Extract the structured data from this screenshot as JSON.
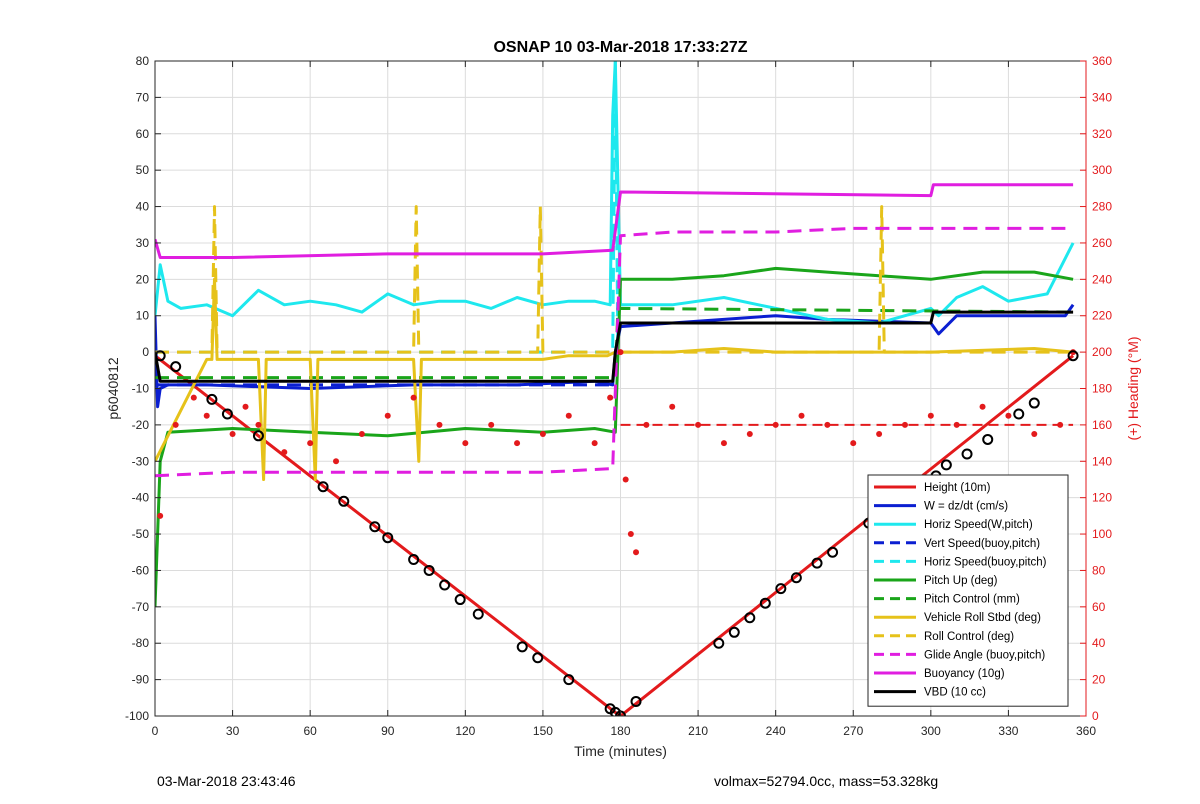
{
  "chart_data": {
    "type": "line",
    "title": "OSNAP 10 03-Mar-2018 17:33:27Z",
    "xlabel": "Time (minutes)",
    "ylabel": "p6040812",
    "y2label": "(+) Heading (°M)",
    "xlim": [
      0,
      360
    ],
    "ylim": [
      -100,
      80
    ],
    "y2lim": [
      0,
      360
    ],
    "xticks": [
      0,
      30,
      60,
      90,
      120,
      150,
      180,
      210,
      240,
      270,
      300,
      330,
      360
    ],
    "yticks": [
      -100,
      -90,
      -80,
      -70,
      -60,
      -50,
      -40,
      -30,
      -20,
      -10,
      0,
      10,
      20,
      30,
      40,
      50,
      60,
      70,
      80
    ],
    "y2ticks": [
      0,
      20,
      40,
      60,
      80,
      100,
      120,
      140,
      160,
      180,
      200,
      220,
      240,
      260,
      280,
      300,
      320,
      340,
      360
    ],
    "grid": true,
    "legend_position": "bottom-right",
    "colors": {
      "red": "#e31a1c",
      "blue": "#0b1fd1",
      "cyan": "#1ee8ee",
      "green": "#1aa51a",
      "yellow": "#e6c21a",
      "magenta": "#e01ee0",
      "black": "#000000",
      "heading": "#e31a1c"
    },
    "series": [
      {
        "name": "Height (10m)",
        "color": "#e31a1c",
        "style": "solid",
        "x": [
          0,
          178,
          180,
          355
        ],
        "y": [
          -1,
          -99,
          -100,
          -1
        ]
      },
      {
        "name": "W = dz/dt (cm/s)",
        "color": "#0b1fd1",
        "style": "solid",
        "x": [
          0,
          1,
          2,
          5,
          20,
          60,
          100,
          140,
          170,
          177,
          178,
          180,
          200,
          240,
          260,
          300,
          303,
          310,
          340,
          352,
          355
        ],
        "y": [
          10,
          -15,
          -10,
          -9,
          -9,
          -10,
          -9,
          -9,
          -8,
          -9,
          0,
          7,
          8,
          10,
          9,
          8,
          5,
          10,
          10,
          10,
          13
        ]
      },
      {
        "name": "Horiz Speed(W,pitch)",
        "color": "#1ee8ee",
        "style": "solid",
        "x": [
          0,
          2,
          5,
          10,
          20,
          30,
          40,
          50,
          60,
          70,
          80,
          90,
          100,
          110,
          120,
          130,
          140,
          150,
          160,
          170,
          176,
          177,
          178,
          180,
          200,
          220,
          240,
          260,
          280,
          300,
          303,
          310,
          320,
          330,
          345,
          355
        ],
        "y": [
          10,
          24,
          14,
          12,
          13,
          10,
          17,
          13,
          14,
          13,
          11,
          16,
          13,
          14,
          14,
          12,
          15,
          13,
          14,
          14,
          13,
          65,
          80,
          13,
          13,
          15,
          12,
          9,
          8,
          12,
          10,
          15,
          18,
          14,
          16,
          30
        ]
      },
      {
        "name": "Vert Speed(buoy,pitch)",
        "color": "#0b1fd1",
        "style": "dashed",
        "x": [
          0,
          178
        ],
        "y": [
          -9,
          -9
        ]
      },
      {
        "name": "Horiz Speed(buoy,pitch)",
        "color": "#1ee8ee",
        "style": "dashed",
        "x": [
          0,
          177,
          178,
          179,
          180
        ],
        "y": [
          0,
          0,
          80,
          0,
          0
        ]
      },
      {
        "name": "Pitch Up (deg)",
        "color": "#1aa51a",
        "style": "solid",
        "x": [
          0,
          2,
          5,
          30,
          60,
          90,
          120,
          150,
          170,
          178,
          180,
          200,
          220,
          240,
          260,
          280,
          300,
          320,
          340,
          355
        ],
        "y": [
          -70,
          -30,
          -22,
          -21,
          -22,
          -23,
          -21,
          -22,
          -21,
          -22,
          20,
          20,
          21,
          23,
          22,
          21,
          20,
          22,
          22,
          20
        ]
      },
      {
        "name": "Pitch Control (mm)",
        "color": "#1aa51a",
        "style": "dashed",
        "x": [
          0,
          178,
          179,
          355
        ],
        "y": [
          -7,
          -7,
          12,
          11
        ]
      },
      {
        "name": "Vehicle Roll Stbd (deg)",
        "color": "#e6c21a",
        "style": "solid",
        "x": [
          0,
          20,
          22,
          23,
          24,
          40,
          42,
          43,
          60,
          62,
          63,
          100,
          102,
          103,
          150,
          160,
          175,
          178,
          180,
          200,
          220,
          240,
          260,
          280,
          300,
          340,
          355
        ],
        "y": [
          -30,
          -2,
          -2,
          20,
          -2,
          -2,
          -35,
          -2,
          -2,
          -35,
          -2,
          -2,
          -30,
          -2,
          -2,
          -1,
          -1,
          0,
          0,
          0,
          1,
          0,
          0,
          0,
          0,
          1,
          0
        ]
      },
      {
        "name": "Roll Control (deg)",
        "color": "#e6c21a",
        "style": "dashed",
        "x": [
          0,
          22,
          23,
          24,
          100,
          101,
          102,
          148,
          149,
          150,
          280,
          281,
          282,
          355
        ],
        "y": [
          0,
          0,
          40,
          0,
          0,
          40,
          0,
          0,
          40,
          0,
          0,
          40,
          0,
          0
        ]
      },
      {
        "name": "Glide Angle (buoy,pitch)",
        "color": "#e01ee0",
        "style": "dashed",
        "x": [
          0,
          30,
          90,
          150,
          177,
          180,
          200,
          240,
          270,
          300,
          330,
          355
        ],
        "y": [
          -34,
          -33,
          -33,
          -33,
          -32,
          32,
          33,
          33,
          34,
          34,
          34,
          34
        ]
      },
      {
        "name": "Buoyancy (10g)",
        "color": "#e01ee0",
        "style": "solid",
        "x": [
          0,
          2,
          30,
          90,
          150,
          177,
          180,
          300,
          301,
          355
        ],
        "y": [
          31,
          26,
          26,
          27,
          27,
          28,
          44,
          43,
          46,
          46
        ]
      },
      {
        "name": "VBD (10 cc)",
        "color": "#000000",
        "style": "solid",
        "x": [
          0,
          2,
          5,
          100,
          177,
          178,
          180,
          300,
          301,
          355
        ],
        "y": [
          0,
          -8,
          -8,
          -8,
          -8,
          0,
          8,
          8,
          11,
          11
        ]
      }
    ],
    "heading": {
      "axis": "right",
      "color": "#e31a1c",
      "style": "dotted",
      "x": [
        2,
        8,
        15,
        20,
        30,
        35,
        40,
        50,
        60,
        70,
        80,
        90,
        100,
        110,
        120,
        130,
        140,
        150,
        160,
        170,
        176,
        180,
        182,
        184,
        186,
        190,
        200,
        210,
        220,
        230,
        240,
        250,
        260,
        270,
        280,
        290,
        300,
        310,
        320,
        330,
        340,
        350,
        355
      ],
      "y": [
        110,
        160,
        175,
        165,
        155,
        170,
        160,
        145,
        150,
        140,
        155,
        165,
        175,
        160,
        150,
        160,
        150,
        155,
        165,
        150,
        175,
        200,
        130,
        100,
        90,
        160,
        170,
        160,
        150,
        155,
        160,
        165,
        160,
        150,
        155,
        160,
        165,
        160,
        170,
        165,
        155,
        160,
        200
      ]
    },
    "heading_ref": {
      "axis": "right",
      "color": "#e31a1c",
      "style": "dashed",
      "x": [
        180,
        355
      ],
      "y": [
        160,
        160
      ]
    },
    "markers": {
      "color": "#000000",
      "x": [
        2,
        8,
        22,
        28,
        40,
        65,
        73,
        85,
        90,
        100,
        106,
        112,
        118,
        125,
        142,
        148,
        160,
        176,
        178,
        180,
        186,
        218,
        224,
        230,
        236,
        242,
        248,
        256,
        262,
        276,
        282,
        302,
        306,
        314,
        322,
        334,
        340,
        355
      ],
      "y": [
        -1,
        -4,
        -13,
        -17,
        -23,
        -37,
        -41,
        -48,
        -51,
        -57,
        -60,
        -64,
        -68,
        -72,
        -81,
        -84,
        -90,
        -98,
        -99,
        -100,
        -96,
        -80,
        -77,
        -73,
        -69,
        -65,
        -62,
        -58,
        -55,
        -47,
        -44,
        -34,
        -31,
        -28,
        -24,
        -17,
        -14,
        -1
      ]
    }
  },
  "footer": {
    "left": "03-Mar-2018 23:43:46",
    "right": "volmax=52794.0cc, mass=53.328kg"
  }
}
